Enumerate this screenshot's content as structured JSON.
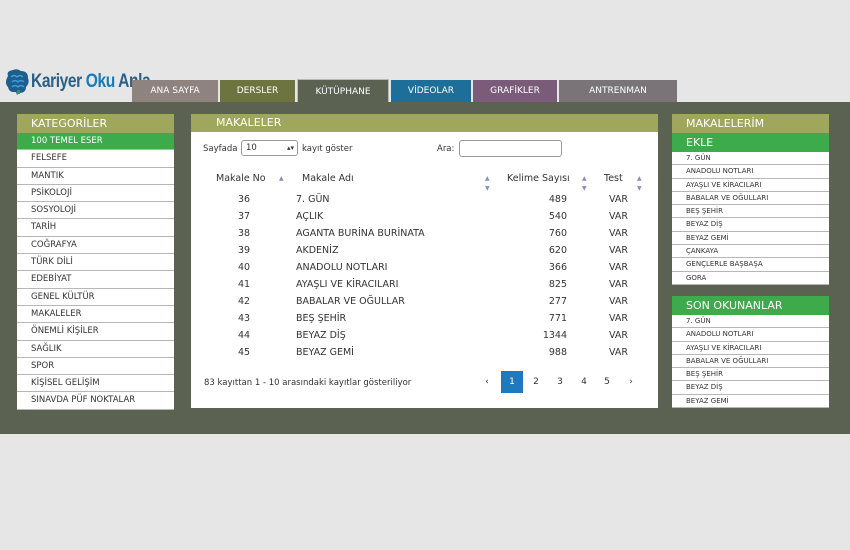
{
  "brand": {
    "part1": "Kariyer ",
    "part2": "Oku",
    "part3": " Anla"
  },
  "nav": [
    {
      "label": "ANA SAYFA",
      "color": "#8f837f"
    },
    {
      "label": "DERSLER",
      "color": "#6d743f"
    },
    {
      "label": "KÜTÜPHANE",
      "color": "#5b6252",
      "active": true
    },
    {
      "label": "VİDEOLAR",
      "color": "#1d6f99"
    },
    {
      "label": "GRAFİKLER",
      "color": "#7a5b7a"
    },
    {
      "label": "ANTRENMAN",
      "color": "#7a7478"
    }
  ],
  "categories": {
    "title": "KATEGORİLER",
    "items": [
      "100 TEMEL ESER",
      "FELSEFE",
      "MANTIK",
      "PSİKOLOJİ",
      "SOSYOLOJİ",
      "TARİH",
      "COĞRAFYA",
      "TÜRK DİLİ",
      "EDEBİYAT",
      "GENEL KÜLTÜR",
      "MAKALELER",
      "ÖNEMLİ KİŞİLER",
      "SAĞLIK",
      "SPOR",
      "KİŞİSEL GELİŞİM",
      "SINAVDA PÜF NOKTALAR"
    ]
  },
  "main": {
    "title": "MAKALELER",
    "page_label": "Sayfada",
    "page_size": "10",
    "show_label": "kayıt göster",
    "search_label": "Ara:",
    "search_value": "",
    "columns": [
      "Makale No",
      "Makale Adı",
      "Kelime Sayısı",
      "Test"
    ],
    "rows": [
      {
        "no": "36",
        "name": "7. GÜN",
        "words": "489",
        "test": "VAR"
      },
      {
        "no": "37",
        "name": "AÇLIK",
        "words": "540",
        "test": "VAR"
      },
      {
        "no": "38",
        "name": "AGANTA BURİNA BURİNATA",
        "words": "760",
        "test": "VAR"
      },
      {
        "no": "39",
        "name": "AKDENİZ",
        "words": "620",
        "test": "VAR"
      },
      {
        "no": "40",
        "name": "ANADOLU NOTLARI",
        "words": "366",
        "test": "VAR"
      },
      {
        "no": "41",
        "name": "AYAŞLI VE KİRACILARI",
        "words": "825",
        "test": "VAR"
      },
      {
        "no": "42",
        "name": "BABALAR VE OĞULLAR",
        "words": "277",
        "test": "VAR"
      },
      {
        "no": "43",
        "name": "BEŞ ŞEHİR",
        "words": "771",
        "test": "VAR"
      },
      {
        "no": "44",
        "name": "BEYAZ DİŞ",
        "words": "1344",
        "test": "VAR"
      },
      {
        "no": "45",
        "name": "BEYAZ GEMİ",
        "words": "988",
        "test": "VAR"
      }
    ],
    "info": "83 kayıttan 1 - 10 arasındaki kayıtlar gösteriliyor",
    "pagination": {
      "prev": "‹",
      "next": "›",
      "pages": [
        "1",
        "2",
        "3",
        "4",
        "5"
      ],
      "current": "1"
    }
  },
  "my_articles": {
    "title": "MAKALELERİM",
    "add": "EKLE",
    "items": [
      "7. GÜN",
      "ANADOLU NOTLARI",
      "AYAŞLI VE KİRACILARI",
      "BABALAR VE OĞULLARI",
      "BEŞ ŞEHİR",
      "BEYAZ DİŞ",
      "BEYAZ GEMİ",
      "ÇANKAYA",
      "GENÇLERLE BAŞBAŞA",
      "GORA"
    ]
  },
  "recent": {
    "title": "SON OKUNANLAR",
    "items": [
      "7. GÜN",
      "ANADOLU NOTLARI",
      "AYAŞLI VE KİRACILARI",
      "BABALAR VE OĞULLARI",
      "BEŞ ŞEHİR",
      "BEYAZ DİŞ",
      "BEYAZ GEMİ"
    ]
  },
  "colors": {
    "accent_olive": "#9fa75c",
    "accent_green": "#3dab4c",
    "band": "#5b6252",
    "page_blue": "#1e79bd"
  }
}
